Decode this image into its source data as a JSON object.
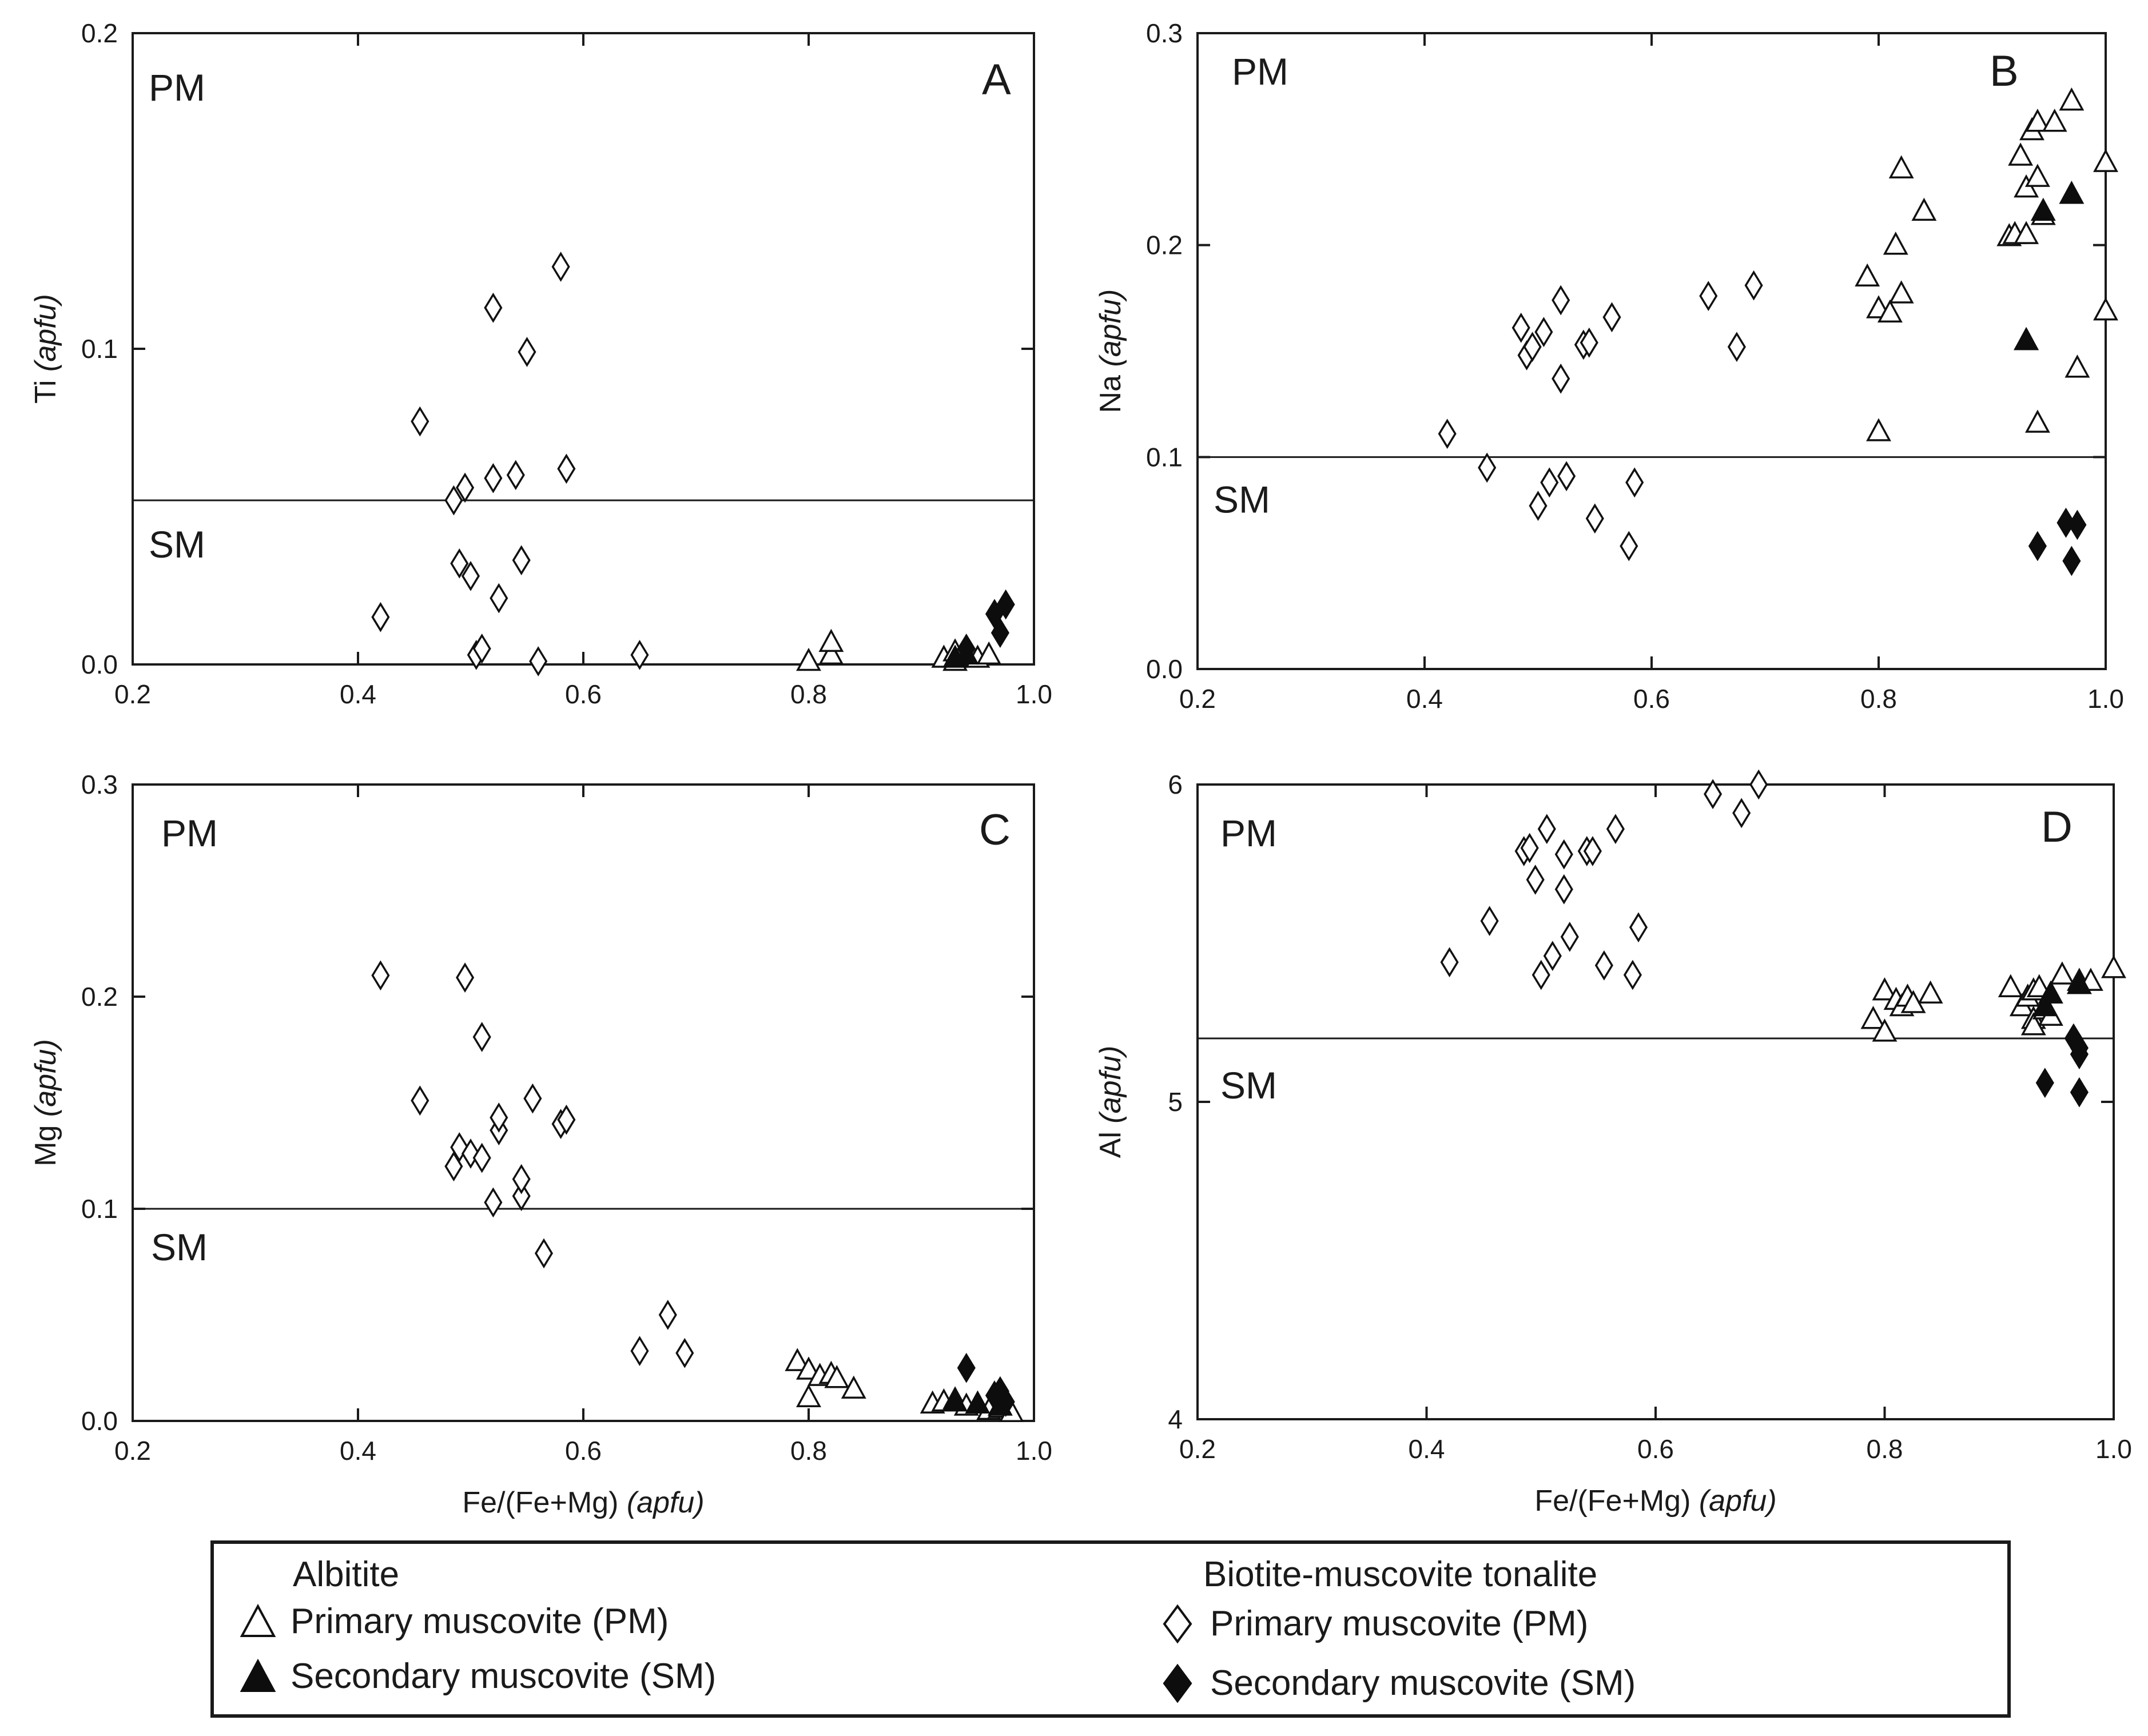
{
  "legend": {
    "albitite_title": "Albitite",
    "albitite_primary": "Primary muscovite (PM)",
    "albitite_secondary": "Secondary muscovite (SM)",
    "tonalite_title": "Biotite-muscovite tonalite",
    "tonalite_primary": "Primary muscovite (PM)",
    "tonalite_secondary": "Secondary muscovite (SM)"
  },
  "chart_data": [
    {
      "type": "scatter",
      "panel": "A",
      "ylabel_main": "Ti",
      "ylabel_unit": "(apfu)",
      "xlabel_main": "",
      "xlabel_unit": "",
      "xlim": [
        0.2,
        1.0
      ],
      "ylim": [
        0,
        0.2
      ],
      "xticks": [
        0.2,
        0.4,
        0.6,
        0.8,
        1.0
      ],
      "xtick_labels": [
        "0.2",
        "0.4",
        "0.6",
        "0.8",
        "1.0"
      ],
      "yticks": [
        0,
        0.1,
        0.2
      ],
      "ytick_labels": [
        "0.0",
        "0.1",
        "0.2"
      ],
      "boundary_y": 0.052,
      "upper_label": "PM",
      "lower_label": "SM",
      "series": [
        {
          "name": "Albitite primary muscovite (PM)",
          "marker": "triangle",
          "filled": false,
          "x": [
            0.8,
            0.82,
            0.82,
            0.92,
            0.93,
            0.93,
            0.94,
            0.95,
            0.96
          ],
          "y": [
            0.001,
            0.003,
            0.007,
            0.002,
            0.004,
            0.001,
            0.003,
            0.002,
            0.003
          ]
        },
        {
          "name": "Albitite secondary muscovite (SM)",
          "marker": "triangle",
          "filled": true,
          "x": [
            0.93,
            0.94
          ],
          "y": [
            0.002,
            0.003
          ]
        },
        {
          "name": "Tonalite primary muscovite (PM)",
          "marker": "diamond",
          "filled": false,
          "x": [
            0.42,
            0.455,
            0.485,
            0.49,
            0.495,
            0.5,
            0.505,
            0.51,
            0.52,
            0.52,
            0.525,
            0.54,
            0.545,
            0.55,
            0.56,
            0.58,
            0.585,
            0.65
          ],
          "y": [
            0.015,
            0.077,
            0.052,
            0.032,
            0.056,
            0.028,
            0.003,
            0.005,
            0.113,
            0.059,
            0.021,
            0.06,
            0.033,
            0.099,
            0.001,
            0.126,
            0.062,
            0.003
          ]
        },
        {
          "name": "Tonalite secondary muscovite (SM)",
          "marker": "diamond",
          "filled": true,
          "x": [
            0.94,
            0.965,
            0.97,
            0.975
          ],
          "y": [
            0.005,
            0.016,
            0.01,
            0.019
          ]
        }
      ]
    },
    {
      "type": "scatter",
      "panel": "B",
      "ylabel_main": "Na",
      "ylabel_unit": "(apfu)",
      "xlabel_main": "",
      "xlabel_unit": "",
      "xlim": [
        0.2,
        1.0
      ],
      "ylim": [
        0,
        0.3
      ],
      "xticks": [
        0.2,
        0.4,
        0.6,
        0.8,
        1.0
      ],
      "xtick_labels": [
        "0.2",
        "0.4",
        "0.6",
        "0.8",
        "1.0"
      ],
      "yticks": [
        0,
        0.1,
        0.2,
        0.3
      ],
      "ytick_labels": [
        "0.0",
        "0.1",
        "0.2",
        "0.3"
      ],
      "boundary_y": 0.1,
      "upper_label": "PM",
      "lower_label": "SM",
      "series": [
        {
          "name": "Albitite primary muscovite (PM)",
          "marker": "triangle",
          "filled": false,
          "x": [
            0.79,
            0.8,
            0.8,
            0.81,
            0.815,
            0.82,
            0.82,
            0.84,
            0.915,
            0.92,
            0.925,
            0.93,
            0.93,
            0.93,
            0.935,
            0.94,
            0.94,
            0.945,
            0.94,
            0.955,
            0.97,
            0.975,
            1.0,
            1.0
          ],
          "y": [
            0.185,
            0.17,
            0.112,
            0.168,
            0.2,
            0.177,
            0.236,
            0.216,
            0.204,
            0.205,
            0.242,
            0.227,
            0.205,
            0.155,
            0.254,
            0.232,
            0.258,
            0.214,
            0.116,
            0.258,
            0.268,
            0.142,
            0.239,
            0.169
          ]
        },
        {
          "name": "Albitite secondary muscovite (SM)",
          "marker": "triangle",
          "filled": true,
          "x": [
            0.93,
            0.945,
            0.97
          ],
          "y": [
            0.155,
            0.216,
            0.224
          ]
        },
        {
          "name": "Tonalite primary muscovite (PM)",
          "marker": "diamond",
          "filled": false,
          "x": [
            0.42,
            0.455,
            0.485,
            0.49,
            0.495,
            0.5,
            0.505,
            0.51,
            0.52,
            0.52,
            0.525,
            0.54,
            0.545,
            0.55,
            0.565,
            0.58,
            0.585,
            0.65,
            0.675,
            0.69
          ],
          "y": [
            0.111,
            0.095,
            0.161,
            0.148,
            0.152,
            0.077,
            0.159,
            0.088,
            0.174,
            0.137,
            0.091,
            0.153,
            0.154,
            0.071,
            0.166,
            0.058,
            0.088,
            0.176,
            0.152,
            0.181
          ]
        },
        {
          "name": "Tonalite secondary muscovite (SM)",
          "marker": "diamond",
          "filled": true,
          "x": [
            0.94,
            0.965,
            0.97,
            0.975
          ],
          "y": [
            0.058,
            0.069,
            0.051,
            0.068
          ]
        }
      ]
    },
    {
      "type": "scatter",
      "panel": "C",
      "ylabel_main": "Mg",
      "ylabel_unit": "(apfu)",
      "xlabel_main": "Fe/(Fe+Mg)",
      "xlabel_unit": "(apfu)",
      "xlim": [
        0.2,
        1.0
      ],
      "ylim": [
        0,
        0.3
      ],
      "xticks": [
        0.2,
        0.4,
        0.6,
        0.8,
        1.0
      ],
      "xtick_labels": [
        "0.2",
        "0.4",
        "0.6",
        "0.8",
        "1.0"
      ],
      "yticks": [
        0,
        0.1,
        0.2,
        0.3
      ],
      "ytick_labels": [
        "0.0",
        "0.1",
        "0.2",
        "0.3"
      ],
      "boundary_y": 0.1,
      "upper_label": "PM",
      "lower_label": "SM",
      "series": [
        {
          "name": "Albitite primary muscovite (PM)",
          "marker": "triangle",
          "filled": false,
          "x": [
            0.79,
            0.8,
            0.8,
            0.81,
            0.82,
            0.825,
            0.84,
            0.91,
            0.92,
            0.93,
            0.94,
            0.95,
            0.96,
            0.97,
            0.98
          ],
          "y": [
            0.028,
            0.024,
            0.011,
            0.021,
            0.022,
            0.02,
            0.015,
            0.008,
            0.009,
            0.01,
            0.007,
            0.008,
            0.005,
            0.006,
            0.004
          ]
        },
        {
          "name": "Albitite secondary muscovite (SM)",
          "marker": "triangle",
          "filled": true,
          "x": [
            0.93,
            0.95,
            0.97
          ],
          "y": [
            0.009,
            0.008,
            0.007
          ]
        },
        {
          "name": "Tonalite primary muscovite (PM)",
          "marker": "diamond",
          "filled": false,
          "x": [
            0.42,
            0.455,
            0.485,
            0.49,
            0.495,
            0.5,
            0.51,
            0.51,
            0.52,
            0.525,
            0.525,
            0.545,
            0.545,
            0.555,
            0.565,
            0.58,
            0.585,
            0.65,
            0.675,
            0.69
          ],
          "y": [
            0.21,
            0.151,
            0.12,
            0.129,
            0.209,
            0.126,
            0.181,
            0.124,
            0.103,
            0.137,
            0.143,
            0.106,
            0.114,
            0.152,
            0.079,
            0.14,
            0.142,
            0.033,
            0.05,
            0.032
          ]
        },
        {
          "name": "Tonalite secondary muscovite (SM)",
          "marker": "diamond",
          "filled": true,
          "x": [
            0.94,
            0.965,
            0.97,
            0.975
          ],
          "y": [
            0.025,
            0.012,
            0.014,
            0.009
          ]
        }
      ]
    },
    {
      "type": "scatter",
      "panel": "D",
      "ylabel_main": "Al",
      "ylabel_unit": "(apfu)",
      "xlabel_main": "Fe/(Fe+Mg)",
      "xlabel_unit": "(apfu)",
      "xlim": [
        0.2,
        1.0
      ],
      "ylim": [
        4,
        6
      ],
      "xticks": [
        0.2,
        0.4,
        0.6,
        0.8,
        1.0
      ],
      "xtick_labels": [
        "0.2",
        "0.4",
        "0.6",
        "0.8",
        "1.0"
      ],
      "yticks": [
        4,
        5,
        6
      ],
      "ytick_labels": [
        "4",
        "5",
        "6"
      ],
      "boundary_y": 5.2,
      "upper_label": "PM",
      "lower_label": "SM",
      "series": [
        {
          "name": "Albitite primary muscovite (PM)",
          "marker": "triangle",
          "filled": false,
          "x": [
            0.79,
            0.8,
            0.8,
            0.81,
            0.815,
            0.82,
            0.825,
            0.84,
            0.91,
            0.92,
            0.925,
            0.93,
            0.93,
            0.93,
            0.935,
            0.94,
            0.945,
            0.955,
            0.97,
            0.98,
            1.0
          ],
          "y": [
            5.26,
            5.22,
            5.35,
            5.32,
            5.3,
            5.33,
            5.31,
            5.34,
            5.36,
            5.3,
            5.33,
            5.26,
            5.35,
            5.24,
            5.36,
            5.29,
            5.27,
            5.4,
            5.38,
            5.38,
            5.42
          ]
        },
        {
          "name": "Albitite secondary muscovite (SM)",
          "marker": "triangle",
          "filled": true,
          "x": [
            0.94,
            0.945,
            0.97
          ],
          "y": [
            5.3,
            5.34,
            5.37
          ]
        },
        {
          "name": "Tonalite primary muscovite (PM)",
          "marker": "diamond",
          "filled": false,
          "x": [
            0.42,
            0.455,
            0.485,
            0.49,
            0.495,
            0.5,
            0.505,
            0.51,
            0.52,
            0.52,
            0.525,
            0.54,
            0.545,
            0.555,
            0.565,
            0.58,
            0.585,
            0.65,
            0.675,
            0.69
          ],
          "y": [
            5.44,
            5.57,
            5.79,
            5.8,
            5.7,
            5.4,
            5.86,
            5.46,
            5.78,
            5.67,
            5.52,
            5.79,
            5.79,
            5.43,
            5.86,
            5.4,
            5.55,
            5.97,
            5.91,
            6.0
          ]
        },
        {
          "name": "Tonalite secondary muscovite (SM)",
          "marker": "diamond",
          "filled": true,
          "x": [
            0.94,
            0.965,
            0.97,
            0.97,
            0.97
          ],
          "y": [
            5.06,
            5.2,
            5.17,
            5.03,
            5.15
          ]
        }
      ]
    }
  ]
}
